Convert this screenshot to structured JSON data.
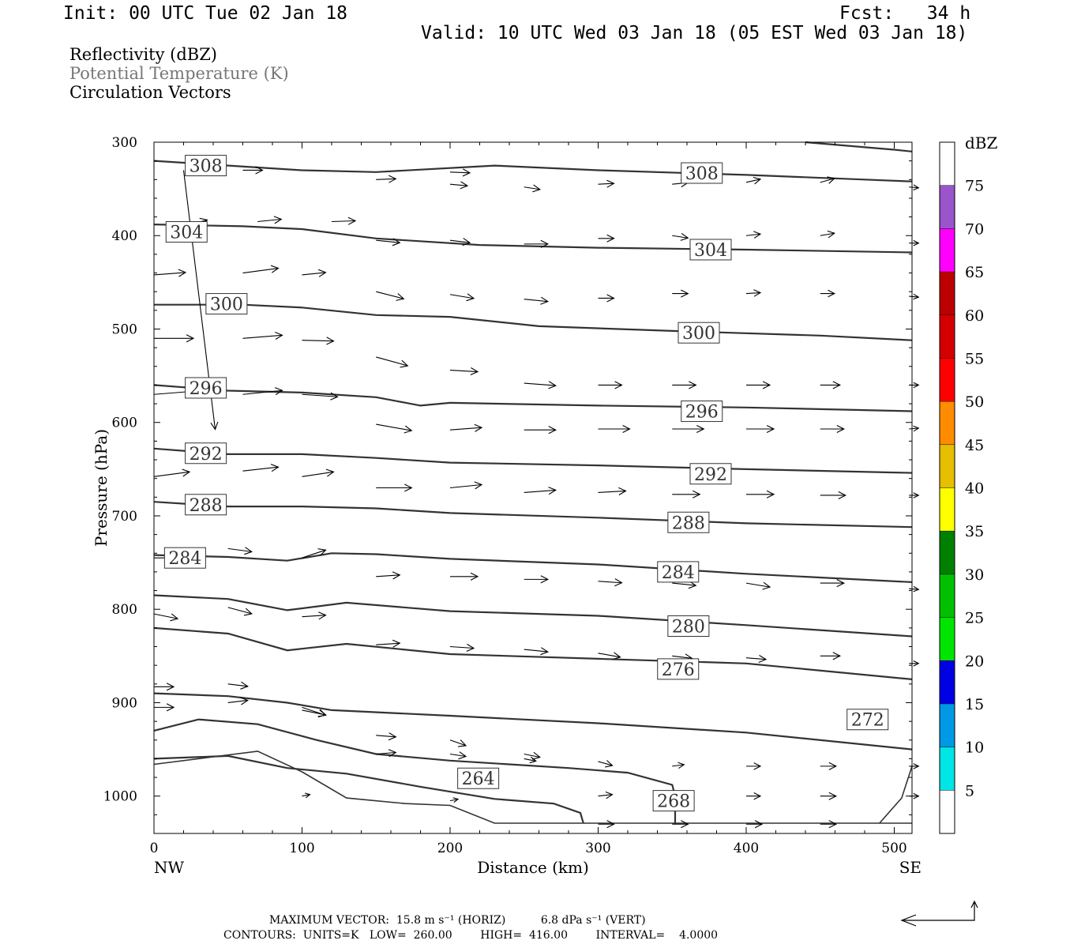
{
  "header": {
    "init": "Init: 00 UTC Tue 02 Jan 18",
    "fcst": "Fcst:   34 h",
    "valid": "Valid: 10 UTC Wed 03 Jan 18 (05 EST Wed 03 Jan 18)"
  },
  "legend_lines": {
    "reflectivity": "Reflectivity (dBZ)",
    "theta": "Potential Temperature (K)",
    "vectors": "Circulation Vectors"
  },
  "footer": {
    "max_vector_label": "MAXIMUM VECTOR:",
    "max_vector_horiz": "15.8 m s⁻¹ (HORIZ)",
    "max_vector_vert": "6.8 dPa s⁻¹ (VERT)",
    "contours_line": "CONTOURS:  UNITS=K   LOW=  260.00        HIGH=  416.00        INTERVAL=    4.0000"
  },
  "chart_data": {
    "type": "line",
    "xlabel": "Distance (km)",
    "ylabel": "Pressure (hPa)",
    "xlim": [
      0,
      512
    ],
    "ylim": [
      300,
      1040
    ],
    "y_inverted": true,
    "x_ticks": [
      0,
      100,
      200,
      300,
      400,
      500
    ],
    "y_ticks": [
      300,
      400,
      500,
      600,
      700,
      800,
      900,
      1000
    ],
    "x_end_labels": {
      "left": "NW",
      "right": "SE"
    },
    "colorbar": {
      "unit": "dBZ",
      "levels": [
        5,
        10,
        15,
        20,
        25,
        30,
        35,
        40,
        45,
        50,
        55,
        60,
        65,
        70,
        75
      ],
      "colors": [
        "#ffffff",
        "#00e5e5",
        "#0099e5",
        "#0000e5",
        "#00e500",
        "#00c000",
        "#008000",
        "#ffff00",
        "#e5bf00",
        "#ff8c00",
        "#ff0000",
        "#d40000",
        "#bc0000",
        "#ff00ff",
        "#9955cc",
        "#ffffff"
      ]
    },
    "contour_units": "K",
    "contours": [
      {
        "label": "308",
        "label_at": [
          35,
          325
        ],
        "points": [
          [
            0,
            320
          ],
          [
            100,
            330
          ],
          [
            150,
            332
          ],
          [
            230,
            325
          ],
          [
            300,
            330
          ],
          [
            400,
            335
          ],
          [
            480,
            340
          ],
          [
            512,
            342
          ]
        ]
      },
      {
        "label": "308",
        "label_at": [
          370,
          333
        ],
        "points": [
          [
            440,
            300
          ],
          [
            500,
            308
          ],
          [
            512,
            310
          ]
        ]
      },
      {
        "label": "304",
        "label_at": [
          22,
          396
        ],
        "points": [
          [
            0,
            388
          ],
          [
            60,
            390
          ],
          [
            100,
            393
          ],
          [
            150,
            403
          ],
          [
            220,
            410
          ],
          [
            300,
            413
          ],
          [
            400,
            415
          ],
          [
            512,
            418
          ]
        ]
      },
      {
        "label": "304",
        "label_at": [
          376,
          415
        ],
        "points": []
      },
      {
        "label": "300",
        "label_at": [
          49,
          473
        ],
        "points": [
          [
            0,
            474
          ],
          [
            60,
            474
          ],
          [
            100,
            477
          ],
          [
            150,
            485
          ],
          [
            200,
            487
          ],
          [
            260,
            497
          ],
          [
            350,
            502
          ],
          [
            450,
            507
          ],
          [
            512,
            512
          ]
        ]
      },
      {
        "label": "300",
        "label_at": [
          368,
          504
        ],
        "points": []
      },
      {
        "label": "296",
        "label_at": [
          35,
          563
        ],
        "points": [
          [
            0,
            560
          ],
          [
            50,
            566
          ],
          [
            100,
            568
          ],
          [
            150,
            573
          ],
          [
            180,
            582
          ],
          [
            200,
            579
          ],
          [
            300,
            582
          ],
          [
            400,
            584
          ],
          [
            512,
            588
          ]
        ]
      },
      {
        "label": "296",
        "label_at": [
          370,
          588
        ],
        "points": []
      },
      {
        "label": "292",
        "label_at": [
          35,
          633
        ],
        "points": [
          [
            0,
            628
          ],
          [
            50,
            634
          ],
          [
            100,
            634
          ],
          [
            150,
            638
          ],
          [
            200,
            643
          ],
          [
            300,
            646
          ],
          [
            400,
            650
          ],
          [
            512,
            654
          ]
        ]
      },
      {
        "label": "292",
        "label_at": [
          376,
          655
        ],
        "points": []
      },
      {
        "label": "288",
        "label_at": [
          35,
          688
        ],
        "points": [
          [
            0,
            685
          ],
          [
            50,
            690
          ],
          [
            100,
            690
          ],
          [
            150,
            692
          ],
          [
            200,
            697
          ],
          [
            300,
            702
          ],
          [
            400,
            708
          ],
          [
            512,
            712
          ]
        ]
      },
      {
        "label": "288",
        "label_at": [
          361,
          707
        ],
        "points": []
      },
      {
        "label": "284",
        "label_at": [
          21,
          745
        ],
        "points": [
          [
            0,
            742
          ],
          [
            50,
            744
          ],
          [
            90,
            748
          ],
          [
            120,
            740
          ],
          [
            150,
            741
          ],
          [
            200,
            746
          ],
          [
            300,
            752
          ],
          [
            400,
            762
          ],
          [
            512,
            771
          ]
        ]
      },
      {
        "label": "284",
        "label_at": [
          354,
          760
        ],
        "points": []
      },
      {
        "label": "280",
        "label_at": [
          361,
          818
        ],
        "points": [
          [
            0,
            785
          ],
          [
            50,
            789
          ],
          [
            90,
            801
          ],
          [
            130,
            793
          ],
          [
            200,
            802
          ],
          [
            300,
            807
          ],
          [
            400,
            817
          ],
          [
            512,
            829
          ]
        ]
      },
      {
        "label": "276",
        "label_at": [
          354,
          864
        ],
        "points": [
          [
            0,
            820
          ],
          [
            50,
            826
          ],
          [
            90,
            844
          ],
          [
            130,
            837
          ],
          [
            200,
            848
          ],
          [
            300,
            853
          ],
          [
            400,
            858
          ],
          [
            512,
            875
          ]
        ]
      },
      {
        "label": "272",
        "label_at": [
          482,
          918
        ],
        "points": [
          [
            0,
            890
          ],
          [
            50,
            893
          ],
          [
            90,
            900
          ],
          [
            120,
            908
          ],
          [
            200,
            914
          ],
          [
            300,
            922
          ],
          [
            400,
            932
          ],
          [
            512,
            950
          ]
        ]
      },
      {
        "label": "268",
        "label_at": [
          351,
          1005
        ],
        "points": [
          [
            0,
            930
          ],
          [
            30,
            918
          ],
          [
            70,
            923
          ],
          [
            110,
            940
          ],
          [
            150,
            955
          ],
          [
            200,
            962
          ],
          [
            280,
            970
          ],
          [
            320,
            975
          ],
          [
            350,
            988
          ],
          [
            352,
            1000
          ],
          [
            352,
            1029
          ]
        ]
      },
      {
        "label": "264",
        "label_at": [
          219,
          981
        ],
        "points": [
          [
            0,
            960
          ],
          [
            50,
            957
          ],
          [
            90,
            970
          ],
          [
            130,
            976
          ],
          [
            180,
            990
          ],
          [
            230,
            1003
          ],
          [
            270,
            1008
          ],
          [
            288,
            1018
          ],
          [
            290,
            1029
          ]
        ]
      },
      {
        "label": "",
        "label_at": null,
        "points": [
          [
            0,
            966
          ],
          [
            40,
            958
          ],
          [
            70,
            952
          ],
          [
            100,
            974
          ],
          [
            130,
            1002
          ],
          [
            170,
            1008
          ],
          [
            200,
            1010
          ],
          [
            230,
            1029
          ],
          [
            512,
            1029
          ]
        ]
      },
      {
        "label": "",
        "label_at": null,
        "points": [
          [
            490,
            1029
          ],
          [
            505,
            1002
          ],
          [
            512,
            968
          ]
        ]
      }
    ],
    "vectors": [
      [
        20,
        330,
        40,
        328
      ],
      [
        200,
        332,
        25,
        1
      ],
      [
        60,
        330,
        25,
        0
      ],
      [
        150,
        340,
        25,
        -1
      ],
      [
        200,
        345,
        22,
        2
      ],
      [
        250,
        348,
        20,
        3
      ],
      [
        300,
        345,
        20,
        -1
      ],
      [
        350,
        345,
        20,
        -2
      ],
      [
        400,
        343,
        18,
        -4
      ],
      [
        450,
        343,
        18,
        -5
      ],
      [
        510,
        348,
        12,
        1
      ],
      [
        20,
        390,
        30,
        -8
      ],
      [
        70,
        385,
        30,
        -3
      ],
      [
        120,
        385,
        30,
        -1
      ],
      [
        150,
        405,
        30,
        3
      ],
      [
        200,
        405,
        25,
        3
      ],
      [
        250,
        409,
        30,
        0
      ],
      [
        300,
        403,
        20,
        0
      ],
      [
        350,
        400,
        20,
        3
      ],
      [
        400,
        400,
        18,
        -2
      ],
      [
        450,
        400,
        18,
        -3
      ],
      [
        510,
        408,
        12,
        0
      ],
      [
        0,
        442,
        40,
        -3
      ],
      [
        60,
        440,
        45,
        -6
      ],
      [
        100,
        442,
        30,
        -3
      ],
      [
        150,
        460,
        35,
        9
      ],
      [
        200,
        463,
        30,
        5
      ],
      [
        250,
        468,
        30,
        3
      ],
      [
        300,
        467,
        20,
        0
      ],
      [
        350,
        462,
        20,
        0
      ],
      [
        400,
        462,
        18,
        -1
      ],
      [
        450,
        462,
        18,
        0
      ],
      [
        510,
        465,
        12,
        1
      ],
      [
        0,
        510,
        50,
        0
      ],
      [
        60,
        510,
        50,
        -4
      ],
      [
        100,
        512,
        40,
        1
      ],
      [
        150,
        530,
        40,
        11
      ],
      [
        200,
        544,
        35,
        2
      ],
      [
        250,
        558,
        40,
        3
      ],
      [
        300,
        560,
        30,
        0
      ],
      [
        350,
        560,
        30,
        0
      ],
      [
        400,
        560,
        30,
        0
      ],
      [
        450,
        560,
        25,
        0
      ],
      [
        510,
        560,
        12,
        0
      ],
      [
        0,
        570,
        50,
        -4
      ],
      [
        60,
        570,
        50,
        -5
      ],
      [
        100,
        570,
        45,
        3
      ],
      [
        150,
        602,
        45,
        8
      ],
      [
        200,
        608,
        40,
        -3
      ],
      [
        250,
        608,
        40,
        0
      ],
      [
        300,
        607,
        40,
        0
      ],
      [
        350,
        607,
        40,
        0
      ],
      [
        400,
        607,
        35,
        0
      ],
      [
        450,
        607,
        30,
        0
      ],
      [
        510,
        607,
        12,
        -1
      ],
      [
        0,
        658,
        45,
        -6
      ],
      [
        60,
        652,
        45,
        -5
      ],
      [
        100,
        658,
        40,
        -6
      ],
      [
        150,
        670,
        45,
        0
      ],
      [
        200,
        670,
        40,
        -4
      ],
      [
        250,
        675,
        40,
        -3
      ],
      [
        300,
        675,
        35,
        -2
      ],
      [
        350,
        677,
        35,
        0
      ],
      [
        400,
        677,
        35,
        0
      ],
      [
        450,
        678,
        32,
        0
      ],
      [
        510,
        678,
        12,
        0
      ],
      [
        0,
        745,
        35,
        0
      ],
      [
        50,
        735,
        30,
        4
      ],
      [
        100,
        745,
        30,
        -10
      ],
      [
        150,
        765,
        30,
        -2
      ],
      [
        200,
        765,
        35,
        0
      ],
      [
        250,
        768,
        30,
        0
      ],
      [
        300,
        770,
        30,
        2
      ],
      [
        350,
        772,
        30,
        3
      ],
      [
        400,
        772,
        30,
        5
      ],
      [
        450,
        772,
        30,
        0
      ],
      [
        510,
        778,
        12,
        1
      ],
      [
        0,
        805,
        30,
        6
      ],
      [
        50,
        798,
        30,
        8
      ],
      [
        100,
        808,
        30,
        -2
      ],
      [
        150,
        838,
        30,
        -2
      ],
      [
        200,
        840,
        30,
        2
      ],
      [
        250,
        843,
        30,
        3
      ],
      [
        300,
        847,
        28,
        5
      ],
      [
        350,
        850,
        25,
        3
      ],
      [
        400,
        852,
        25,
        2
      ],
      [
        450,
        850,
        25,
        0
      ],
      [
        510,
        858,
        12,
        0
      ],
      [
        0,
        883,
        25,
        0
      ],
      [
        50,
        880,
        25,
        3
      ],
      [
        100,
        905,
        30,
        10
      ],
      [
        150,
        935,
        25,
        2
      ],
      [
        200,
        940,
        20,
        7
      ],
      [
        250,
        955,
        20,
        4
      ],
      [
        300,
        963,
        18,
        5
      ],
      [
        350,
        968,
        15,
        -2
      ],
      [
        400,
        968,
        18,
        0
      ],
      [
        450,
        968,
        20,
        0
      ],
      [
        510,
        968,
        12,
        0
      ],
      [
        0,
        905,
        25,
        0
      ],
      [
        50,
        900,
        25,
        -3
      ],
      [
        100,
        908,
        30,
        6
      ],
      [
        150,
        955,
        25,
        -2
      ],
      [
        200,
        955,
        20,
        3
      ],
      [
        250,
        960,
        15,
        3
      ],
      [
        300,
        1000,
        18,
        -2
      ],
      [
        350,
        1000,
        18,
        -2
      ],
      [
        400,
        1000,
        18,
        0
      ],
      [
        450,
        1000,
        20,
        0
      ],
      [
        510,
        1000,
        12,
        0
      ],
      [
        100,
        1000,
        10,
        -2
      ],
      [
        200,
        1005,
        10,
        -2
      ],
      [
        300,
        1030,
        20,
        0
      ],
      [
        350,
        1030,
        20,
        0
      ],
      [
        400,
        1030,
        20,
        0
      ],
      [
        450,
        1030,
        20,
        0
      ]
    ]
  }
}
